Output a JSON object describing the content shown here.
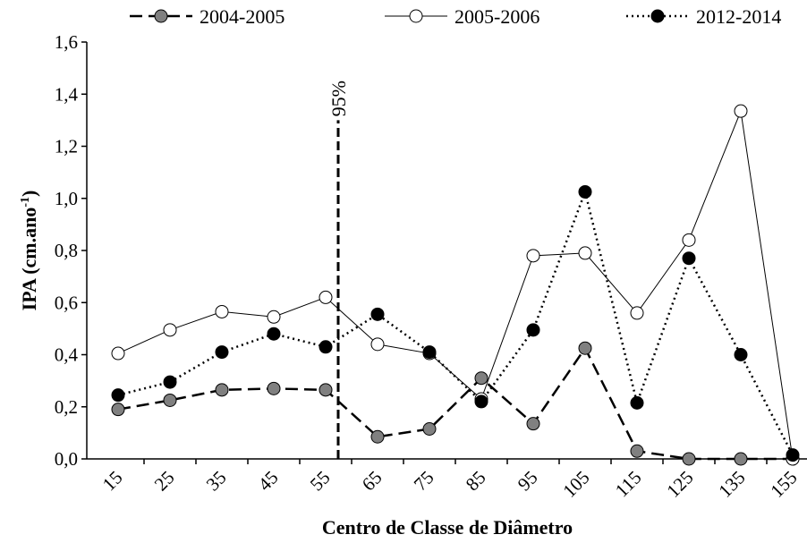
{
  "chart_data": {
    "type": "line",
    "x_label": "Centro de Classe de Diâmetro",
    "y_label": {
      "text": "IPA (cm.ano",
      "sup": "-1",
      "end": ")"
    },
    "categories": [
      "15",
      "25",
      "35",
      "45",
      "55",
      "65",
      "75",
      "85",
      "95",
      "105",
      "115",
      "125",
      "135",
      "155"
    ],
    "series": [
      {
        "name": "2004-2005",
        "color": "#808080",
        "line": "dashed",
        "values": [
          0.19,
          0.225,
          0.265,
          0.27,
          0.265,
          0.085,
          0.115,
          0.31,
          0.135,
          0.425,
          0.03,
          0.0,
          0.0,
          0.0
        ]
      },
      {
        "name": "2005-2006",
        "color": "#ffffff",
        "line": "solid",
        "values": [
          0.405,
          0.495,
          0.565,
          0.545,
          0.62,
          0.44,
          0.405,
          0.23,
          0.78,
          0.79,
          0.56,
          0.84,
          1.335,
          0.0
        ]
      },
      {
        "name": "2012-2014",
        "color": "#000000",
        "line": "dotted",
        "values": [
          0.245,
          0.295,
          0.41,
          0.48,
          0.43,
          0.555,
          0.41,
          0.22,
          0.495,
          1.025,
          0.215,
          0.77,
          0.4,
          0.015
        ]
      }
    ],
    "annotation": {
      "label": "95%",
      "category": "55",
      "top": 1.3
    },
    "ylim": [
      0,
      1.6
    ],
    "yticks": [
      {
        "value": 0,
        "label": "0,0"
      },
      {
        "value": 0.2,
        "label": "0,2"
      },
      {
        "value": 0.4,
        "label": "0,4"
      },
      {
        "value": 0.6,
        "label": "0,6"
      },
      {
        "value": 0.8,
        "label": "0,8"
      },
      {
        "value": 1.0,
        "label": "1,0"
      },
      {
        "value": 1.2,
        "label": "1,2"
      },
      {
        "value": 1.4,
        "label": "1,4"
      },
      {
        "value": 1.6,
        "label": "1,6"
      }
    ],
    "legend": "top",
    "grid": false
  }
}
